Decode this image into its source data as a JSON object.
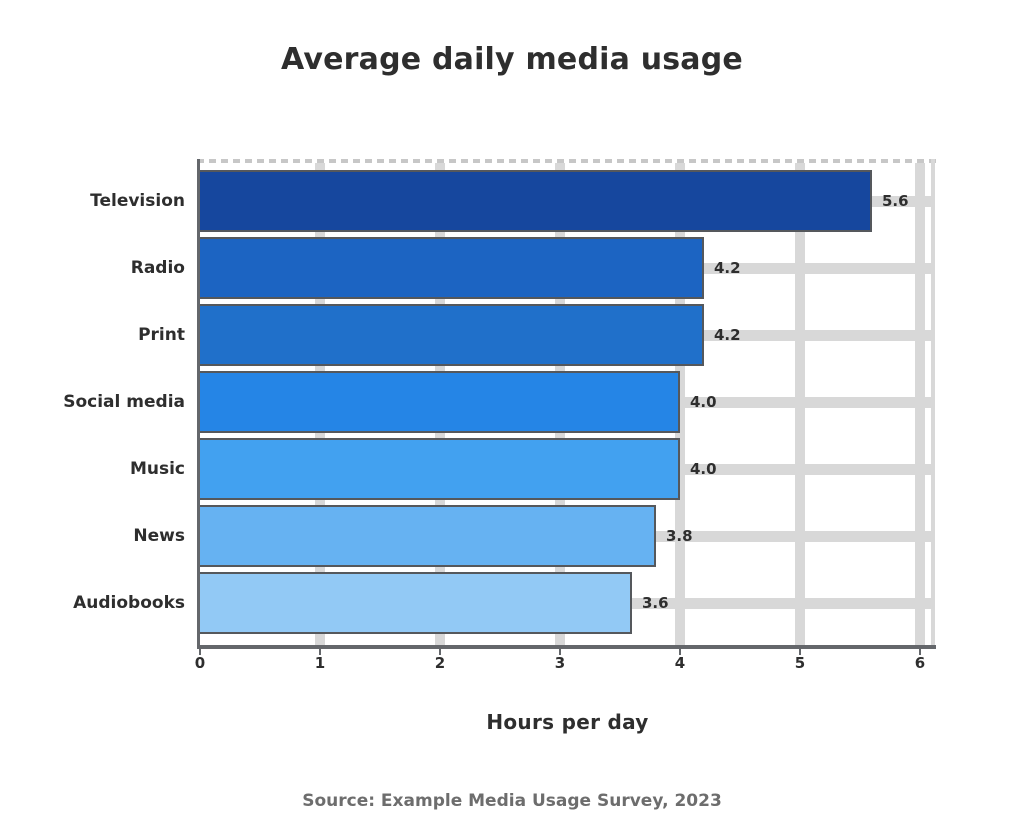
{
  "chart_data": {
    "type": "bar",
    "orientation": "horizontal",
    "title": "Average daily media usage",
    "xlabel": "Hours per day",
    "source": "Source: Example Media Usage Survey, 2023",
    "categories": [
      "Television",
      "Radio",
      "Print",
      "Social media",
      "Music",
      "News",
      "Audiobooks"
    ],
    "values": [
      5.6,
      4.2,
      4.2,
      4.0,
      4.0,
      3.8,
      3.6
    ],
    "value_labels": [
      "5.6",
      "4.2",
      "4.2",
      "4.0",
      "4.0",
      "3.8",
      "3.6"
    ],
    "xticks": [
      0,
      1,
      2,
      3,
      4,
      5,
      6
    ],
    "xlim": [
      0,
      6.1
    ],
    "grid": true,
    "legend": false,
    "bar_colors": [
      "#16479e",
      "#1c64c2",
      "#2070ca",
      "#2585e6",
      "#42a1f0",
      "#66b2f2",
      "#92c9f5"
    ]
  },
  "colors": {
    "background": "#ffffff",
    "title_text": "#2e2e2e",
    "axis_text": "#2e2e2e",
    "muted_text": "#6d6d6d",
    "grid": "#d8d8d8",
    "spine": "#64676b",
    "bar_border": "#55585c"
  }
}
